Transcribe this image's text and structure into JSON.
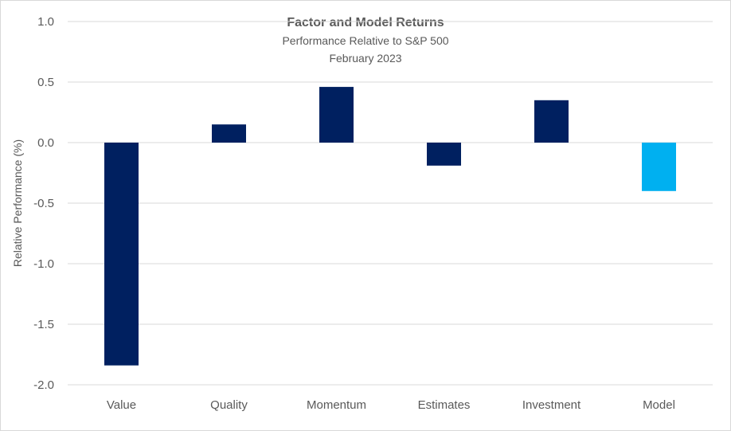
{
  "chart_data": {
    "type": "bar",
    "title": "Factor and Model Returns",
    "subtitle": "Performance Relative to S&P 500",
    "subtitle2": "February 2023",
    "xlabel": "",
    "ylabel": "Relative Performance (%)",
    "categories": [
      "Value",
      "Quality",
      "Momentum",
      "Estimates",
      "Investment",
      "Model"
    ],
    "values": [
      -1.84,
      0.15,
      0.46,
      -0.19,
      0.35,
      -0.4
    ],
    "bar_colors": [
      "#002060",
      "#002060",
      "#002060",
      "#002060",
      "#002060",
      "#00B0F0"
    ],
    "ylim": [
      -2.0,
      1.0
    ],
    "yticks": [
      1.0,
      0.5,
      0.0,
      -0.5,
      -1.0,
      -1.5,
      -2.0
    ],
    "ytick_labels": [
      "1.0",
      "0.5",
      "0.0",
      "-0.5",
      "-1.0",
      "-1.5",
      "-2.0"
    ],
    "grid": true,
    "legend": "none",
    "colors": {
      "gridline": "#d9d9d9",
      "text": "#595959"
    }
  }
}
